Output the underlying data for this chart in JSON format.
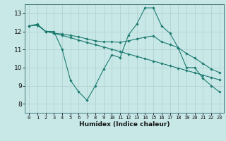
{
  "xlabel": "Humidex (Indice chaleur)",
  "background_color": "#c8e8e8",
  "line_color": "#1a7a6e",
  "grid_color": "#b0cccc",
  "xlim": [
    -0.5,
    23.5
  ],
  "ylim": [
    7.5,
    13.5
  ],
  "xticks": [
    0,
    1,
    2,
    3,
    4,
    5,
    6,
    7,
    8,
    9,
    10,
    11,
    12,
    13,
    14,
    15,
    16,
    17,
    18,
    19,
    20,
    21,
    22,
    23
  ],
  "yticks": [
    8,
    9,
    10,
    11,
    12,
    13
  ],
  "line1_x": [
    0,
    1,
    2,
    3,
    4,
    5,
    6,
    7,
    8,
    9,
    10,
    11,
    12,
    13,
    14,
    15,
    16,
    17,
    18,
    19,
    20,
    21,
    22,
    23
  ],
  "line1_y": [
    12.3,
    12.4,
    12.0,
    12.0,
    11.0,
    9.3,
    8.65,
    8.2,
    9.0,
    9.9,
    10.7,
    10.55,
    11.8,
    12.4,
    13.3,
    13.3,
    12.3,
    11.9,
    11.1,
    10.0,
    10.0,
    9.4,
    9.0,
    8.65
  ],
  "line2_x": [
    0,
    1,
    2,
    3,
    4,
    5,
    6,
    7,
    8,
    9,
    10,
    11,
    12,
    13,
    14,
    15,
    16,
    17,
    18,
    19,
    20,
    21,
    22,
    23
  ],
  "line2_y": [
    12.3,
    12.35,
    12.0,
    11.9,
    11.78,
    11.65,
    11.52,
    11.39,
    11.26,
    11.14,
    11.01,
    10.88,
    10.75,
    10.62,
    10.49,
    10.36,
    10.23,
    10.1,
    9.97,
    9.84,
    9.71,
    9.58,
    9.45,
    9.32
  ],
  "line3_x": [
    0,
    1,
    2,
    3,
    4,
    5,
    6,
    7,
    8,
    9,
    10,
    11,
    12,
    13,
    14,
    15,
    16,
    17,
    18,
    19,
    20,
    21,
    22,
    23
  ],
  "line3_y": [
    12.3,
    12.35,
    12.0,
    11.9,
    11.85,
    11.78,
    11.7,
    11.58,
    11.48,
    11.42,
    11.42,
    11.4,
    11.48,
    11.58,
    11.68,
    11.75,
    11.42,
    11.28,
    11.1,
    10.78,
    10.52,
    10.22,
    9.92,
    9.72
  ]
}
